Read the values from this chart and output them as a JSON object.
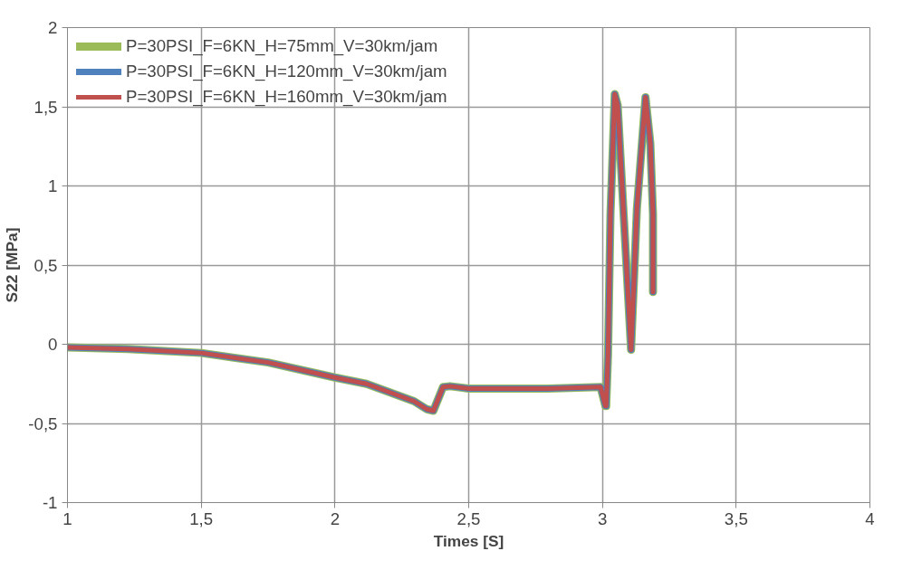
{
  "chart_data": {
    "type": "line",
    "xlabel": "Times [S]",
    "ylabel": "S22 [MPa]",
    "xlim": [
      1,
      4
    ],
    "ylim": [
      -1,
      2
    ],
    "xticks": [
      1,
      {
        "value": 1.5,
        "label": "1,5"
      },
      2,
      {
        "value": 2.5,
        "label": "2,5"
      },
      3,
      {
        "value": 3.5,
        "label": "3,5"
      },
      4
    ],
    "yticks": [
      -1,
      {
        "value": -0.5,
        "label": "-0,5"
      },
      0,
      {
        "value": 0.5,
        "label": "0,5"
      },
      1,
      {
        "value": 1.5,
        "label": "1,5"
      },
      2
    ],
    "grid": true,
    "legend": "top left",
    "marker": "none",
    "line_style": "solid",
    "x": [
      1,
      1.225,
      1.5,
      1.582,
      1.75,
      2,
      2.118,
      2.296,
      2.343,
      2.368,
      2.404,
      2.43,
      2.5,
      2.654,
      2.796,
      2.993,
      3.011,
      3.014,
      3.021,
      3.03,
      3.046,
      3.057,
      3.107,
      3.129,
      3.161,
      3.179,
      3.189,
      3.189
    ],
    "series": [
      {
        "name": "P=30PSI_F=6KN_H=75mm_V=30km/jam",
        "color": "#9bbb59",
        "values": [
          -0.02,
          -0.03,
          -0.055,
          -0.075,
          -0.115,
          -0.21,
          -0.25,
          -0.36,
          -0.41,
          -0.42,
          -0.27,
          -0.265,
          -0.28,
          -0.28,
          -0.28,
          -0.27,
          -0.39,
          -0.39,
          -0.06,
          0.82,
          1.58,
          1.51,
          -0.035,
          0.86,
          1.56,
          1.27,
          0.82,
          0.33
        ]
      },
      {
        "name": "P=30PSI_F=6KN_H=120mm_V=30km/jam",
        "color": "#4f81bd",
        "values": [
          -0.02,
          -0.03,
          -0.055,
          -0.075,
          -0.115,
          -0.21,
          -0.25,
          -0.36,
          -0.41,
          -0.42,
          -0.27,
          -0.265,
          -0.28,
          -0.28,
          -0.28,
          -0.27,
          -0.39,
          -0.39,
          -0.06,
          0.82,
          1.58,
          1.51,
          -0.035,
          0.86,
          1.56,
          1.27,
          0.82,
          0.33
        ]
      },
      {
        "name": "P=30PSI_F=6KN_H=160mm_V=30km/jam",
        "color": "#c0504d",
        "values": [
          -0.02,
          -0.03,
          -0.055,
          -0.075,
          -0.115,
          -0.21,
          -0.25,
          -0.36,
          -0.41,
          -0.42,
          -0.27,
          -0.265,
          -0.28,
          -0.28,
          -0.28,
          -0.27,
          -0.39,
          -0.39,
          -0.06,
          0.82,
          1.58,
          1.51,
          -0.035,
          0.86,
          1.56,
          1.27,
          0.82,
          0.33
        ]
      }
    ]
  }
}
